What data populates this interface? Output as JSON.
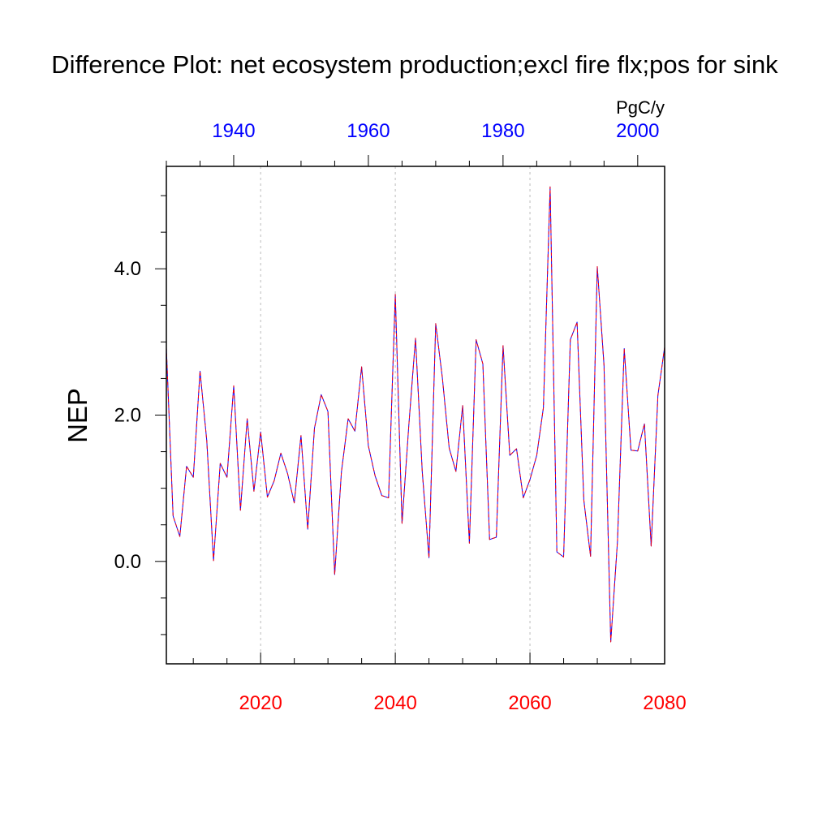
{
  "chart_data": {
    "type": "line",
    "title": "Difference Plot: net ecosystem production;excl fire flx;pos for sink",
    "ylabel": "NEP",
    "units": "PgC/y",
    "ylim": [
      -1.4,
      5.4
    ],
    "y_ticks": [
      "0.0",
      "2.0",
      "4.0"
    ],
    "y_tick_values": [
      0,
      2,
      4
    ],
    "y_minor_step": 0.5,
    "x_bottom": {
      "range": [
        2006,
        2080
      ],
      "ticks": [
        2020,
        2040,
        2060,
        2080
      ],
      "tick_labels": [
        "2020",
        "2040",
        "2060",
        "2080"
      ],
      "minor_step": 5,
      "color": "#ff0000"
    },
    "x_top": {
      "range": [
        1930,
        2004
      ],
      "ticks": [
        1940,
        1960,
        1980,
        2000
      ],
      "tick_labels": [
        "1940",
        "1960",
        "1980",
        "2000"
      ],
      "minor_step": 5,
      "color": "#0000ff"
    },
    "vertical_gridlines": [
      2020,
      2040,
      2060
    ],
    "grid": "dashed vertical at major bottom ticks",
    "x": [
      2006,
      2007,
      2008,
      2009,
      2010,
      2011,
      2012,
      2013,
      2014,
      2015,
      2016,
      2017,
      2018,
      2019,
      2020,
      2021,
      2022,
      2023,
      2024,
      2025,
      2026,
      2027,
      2028,
      2029,
      2030,
      2031,
      2032,
      2033,
      2034,
      2035,
      2036,
      2037,
      2038,
      2039,
      2040,
      2041,
      2042,
      2043,
      2044,
      2045,
      2046,
      2047,
      2048,
      2049,
      2050,
      2051,
      2052,
      2053,
      2054,
      2055,
      2056,
      2057,
      2058,
      2059,
      2060,
      2061,
      2062,
      2063,
      2064,
      2065,
      2066,
      2067,
      2068,
      2069,
      2070,
      2071,
      2072,
      2073,
      2074,
      2075,
      2076,
      2077,
      2078,
      2079,
      2080
    ],
    "series": [
      {
        "color": "#0000ff",
        "dash": "solid",
        "values": [
          2.92,
          0.62,
          0.34,
          1.3,
          1.15,
          2.6,
          1.65,
          0.01,
          1.34,
          1.15,
          2.4,
          0.7,
          1.95,
          0.96,
          1.77,
          0.88,
          1.1,
          1.48,
          1.2,
          0.8,
          1.72,
          0.44,
          1.82,
          2.28,
          2.05,
          -0.18,
          1.22,
          1.95,
          1.78,
          2.66,
          1.58,
          1.17,
          0.9,
          0.87,
          3.65,
          0.52,
          1.85,
          3.05,
          1.23,
          0.05,
          3.25,
          2.5,
          1.55,
          1.23,
          2.13,
          0.25,
          3.03,
          2.7,
          0.3,
          0.33,
          2.95,
          1.45,
          1.54,
          0.87,
          1.12,
          1.45,
          2.1,
          5.12,
          0.13,
          0.06,
          3.03,
          3.27,
          0.84,
          0.07,
          4.03,
          2.68,
          -1.1,
          0.28,
          2.91,
          1.52,
          1.51,
          1.88,
          0.21,
          2.27,
          2.93
        ]
      },
      {
        "color": "#ff0000",
        "dash": "dashed",
        "values": [
          2.92,
          0.62,
          0.34,
          1.3,
          1.15,
          2.6,
          1.65,
          0.01,
          1.34,
          1.15,
          2.4,
          0.7,
          1.95,
          0.96,
          1.77,
          0.88,
          1.1,
          1.48,
          1.2,
          0.8,
          1.72,
          0.44,
          1.82,
          2.28,
          2.05,
          -0.18,
          1.22,
          1.95,
          1.78,
          2.66,
          1.58,
          1.17,
          0.9,
          0.87,
          3.65,
          0.52,
          1.85,
          3.05,
          1.23,
          0.05,
          3.25,
          2.5,
          1.55,
          1.23,
          2.13,
          0.25,
          3.03,
          2.7,
          0.3,
          0.33,
          2.95,
          1.45,
          1.54,
          0.87,
          1.12,
          1.45,
          2.1,
          5.12,
          0.13,
          0.06,
          3.03,
          3.27,
          0.84,
          0.07,
          4.03,
          2.68,
          -1.1,
          0.28,
          2.91,
          1.52,
          1.51,
          1.88,
          0.21,
          2.27,
          2.93
        ]
      }
    ]
  }
}
